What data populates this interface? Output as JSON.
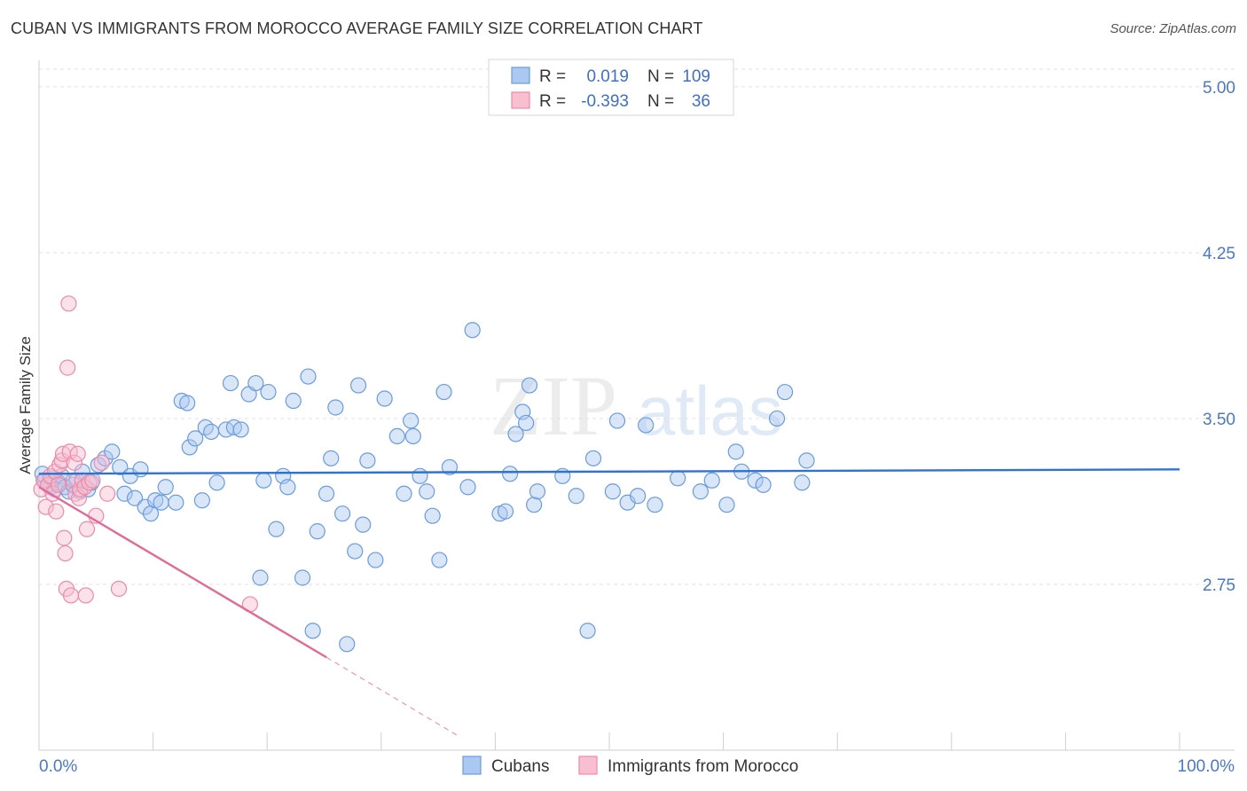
{
  "header": {
    "title": "CUBAN VS IMMIGRANTS FROM MOROCCO AVERAGE FAMILY SIZE CORRELATION CHART",
    "source": "Source: ZipAtlas.com"
  },
  "watermark": {
    "zip": "ZIP",
    "atlas": "atlas"
  },
  "chart_data": {
    "type": "scatter",
    "title": "CUBAN VS IMMIGRANTS FROM MOROCCO AVERAGE FAMILY SIZE CORRELATION CHART",
    "xlabel": "",
    "ylabel": "Average Family Size",
    "xlim": [
      0,
      100
    ],
    "ylim": [
      2.0,
      5.12
    ],
    "x_tick_labels": {
      "min": "0.0%",
      "max": "100.0%"
    },
    "y_ticks": [
      {
        "value": 5.0,
        "label": "5.00"
      },
      {
        "value": 4.25,
        "label": "4.25"
      },
      {
        "value": 3.5,
        "label": "3.50"
      },
      {
        "value": 2.75,
        "label": "2.75"
      }
    ],
    "legend_stats": [
      {
        "r_label": "R =",
        "r_value": "0.019",
        "n_label": "N =",
        "n_value": "109"
      },
      {
        "r_label": "R =",
        "r_value": "-0.393",
        "n_label": "N =",
        "n_value": "36"
      }
    ],
    "series": [
      {
        "name": "Cubans",
        "color": "#6a9be0",
        "fill": "#aac8f0",
        "trend": {
          "x": [
            0,
            100
          ],
          "y": [
            3.25,
            3.27
          ],
          "color": "#2f72d0"
        },
        "points": [
          [
            0.3,
            3.25
          ],
          [
            0.5,
            3.22
          ],
          [
            0.8,
            3.2
          ],
          [
            1.0,
            3.19
          ],
          [
            1.2,
            3.23
          ],
          [
            1.4,
            3.18
          ],
          [
            1.7,
            3.21
          ],
          [
            2.0,
            3.24
          ],
          [
            2.3,
            3.19
          ],
          [
            2.6,
            3.17
          ],
          [
            3.0,
            3.2
          ],
          [
            3.3,
            3.22
          ],
          [
            3.6,
            3.17
          ],
          [
            3.8,
            3.26
          ],
          [
            4.3,
            3.18
          ],
          [
            4.6,
            3.21
          ],
          [
            5.2,
            3.29
          ],
          [
            5.8,
            3.32
          ],
          [
            6.4,
            3.35
          ],
          [
            7.1,
            3.28
          ],
          [
            7.5,
            3.16
          ],
          [
            8.0,
            3.24
          ],
          [
            8.4,
            3.14
          ],
          [
            8.9,
            3.27
          ],
          [
            9.3,
            3.1
          ],
          [
            9.8,
            3.07
          ],
          [
            10.2,
            3.13
          ],
          [
            10.7,
            3.12
          ],
          [
            11.1,
            3.19
          ],
          [
            12.0,
            3.12
          ],
          [
            12.5,
            3.58
          ],
          [
            13.0,
            3.57
          ],
          [
            13.2,
            3.37
          ],
          [
            13.7,
            3.41
          ],
          [
            14.3,
            3.13
          ],
          [
            14.6,
            3.46
          ],
          [
            15.1,
            3.44
          ],
          [
            15.6,
            3.21
          ],
          [
            16.4,
            3.45
          ],
          [
            16.8,
            3.66
          ],
          [
            17.1,
            3.46
          ],
          [
            17.7,
            3.45
          ],
          [
            18.4,
            3.61
          ],
          [
            19.0,
            3.66
          ],
          [
            19.4,
            2.78
          ],
          [
            19.7,
            3.22
          ],
          [
            20.1,
            3.62
          ],
          [
            20.8,
            3.0
          ],
          [
            21.4,
            3.24
          ],
          [
            21.8,
            3.19
          ],
          [
            22.3,
            3.58
          ],
          [
            23.1,
            2.78
          ],
          [
            23.6,
            3.69
          ],
          [
            24.0,
            2.54
          ],
          [
            24.4,
            2.99
          ],
          [
            25.2,
            3.16
          ],
          [
            25.6,
            3.32
          ],
          [
            26.0,
            3.55
          ],
          [
            26.6,
            3.07
          ],
          [
            27.0,
            2.48
          ],
          [
            27.7,
            2.9
          ],
          [
            28.0,
            3.65
          ],
          [
            28.4,
            3.02
          ],
          [
            28.8,
            3.31
          ],
          [
            29.5,
            2.86
          ],
          [
            30.3,
            3.59
          ],
          [
            31.4,
            3.42
          ],
          [
            32.0,
            3.16
          ],
          [
            32.6,
            3.49
          ],
          [
            32.8,
            3.42
          ],
          [
            33.4,
            3.24
          ],
          [
            34.0,
            3.17
          ],
          [
            34.5,
            3.06
          ],
          [
            35.1,
            2.86
          ],
          [
            35.5,
            3.62
          ],
          [
            36.0,
            3.28
          ],
          [
            37.6,
            3.19
          ],
          [
            38.0,
            3.9
          ],
          [
            40.4,
            3.07
          ],
          [
            40.9,
            3.08
          ],
          [
            41.3,
            3.25
          ],
          [
            41.8,
            3.43
          ],
          [
            42.4,
            3.53
          ],
          [
            42.7,
            3.48
          ],
          [
            43.0,
            3.65
          ],
          [
            43.4,
            3.11
          ],
          [
            43.7,
            3.17
          ],
          [
            45.9,
            3.24
          ],
          [
            47.1,
            3.15
          ],
          [
            48.1,
            2.54
          ],
          [
            48.6,
            3.32
          ],
          [
            50.3,
            3.17
          ],
          [
            50.7,
            3.49
          ],
          [
            51.6,
            3.12
          ],
          [
            52.5,
            3.15
          ],
          [
            53.2,
            3.47
          ],
          [
            54.0,
            3.11
          ],
          [
            56.0,
            3.23
          ],
          [
            58.0,
            3.17
          ],
          [
            59.0,
            3.22
          ],
          [
            60.3,
            3.11
          ],
          [
            61.1,
            3.35
          ],
          [
            61.6,
            3.26
          ],
          [
            62.8,
            3.22
          ],
          [
            63.5,
            3.2
          ],
          [
            64.7,
            3.5
          ],
          [
            65.4,
            3.62
          ],
          [
            66.9,
            3.21
          ],
          [
            67.3,
            3.31
          ]
        ]
      },
      {
        "name": "Immigrants from Morocco",
        "color": "#ee8aa8",
        "fill": "#f7bfd0",
        "trend": {
          "x": [
            0,
            25.2
          ],
          "y": [
            3.19,
            2.42
          ],
          "color": "#e26a94",
          "dash_to": [
            36.9,
            2.06
          ]
        },
        "points": [
          [
            0.2,
            3.18
          ],
          [
            0.4,
            3.22
          ],
          [
            0.6,
            3.1
          ],
          [
            0.8,
            3.2
          ],
          [
            1.0,
            3.24
          ],
          [
            1.2,
            3.16
          ],
          [
            1.4,
            3.26
          ],
          [
            1.5,
            3.08
          ],
          [
            1.7,
            3.2
          ],
          [
            1.8,
            3.29
          ],
          [
            2.0,
            3.31
          ],
          [
            2.1,
            3.34
          ],
          [
            2.2,
            2.96
          ],
          [
            2.3,
            2.89
          ],
          [
            2.4,
            2.73
          ],
          [
            2.5,
            3.73
          ],
          [
            2.6,
            4.02
          ],
          [
            2.7,
            3.35
          ],
          [
            2.8,
            2.7
          ],
          [
            3.0,
            3.22
          ],
          [
            3.1,
            3.3
          ],
          [
            3.2,
            3.16
          ],
          [
            3.4,
            3.34
          ],
          [
            3.5,
            3.14
          ],
          [
            3.6,
            3.18
          ],
          [
            3.8,
            3.22
          ],
          [
            4.0,
            3.19
          ],
          [
            4.1,
            2.7
          ],
          [
            4.2,
            3.0
          ],
          [
            4.4,
            3.21
          ],
          [
            4.7,
            3.22
          ],
          [
            5.0,
            3.06
          ],
          [
            5.5,
            3.3
          ],
          [
            6.0,
            3.16
          ],
          [
            7.0,
            2.73
          ],
          [
            18.5,
            2.66
          ]
        ]
      }
    ]
  }
}
